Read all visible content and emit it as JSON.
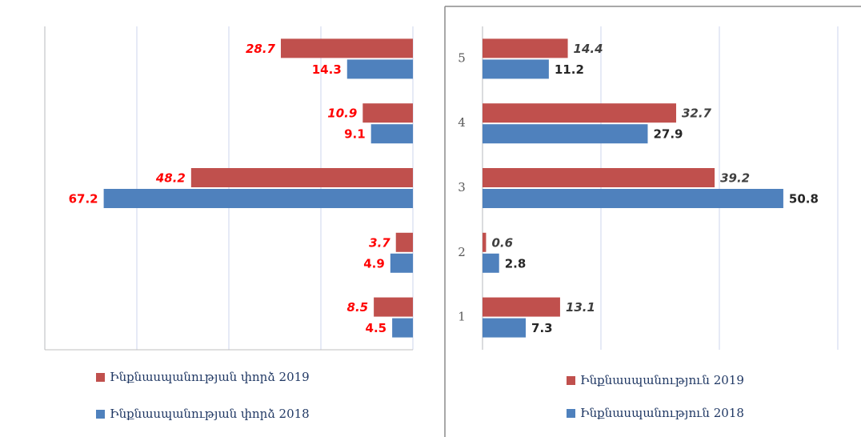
{
  "chart_data": [
    {
      "type": "bar",
      "orientation": "horizontal",
      "x_reversed": true,
      "categories": [
        null,
        null,
        null,
        null,
        null
      ],
      "series": [
        {
          "name": "Ինքնասպանության փորձ 2019",
          "color": "#c0504d",
          "values": [
            8.5,
            3.7,
            48.2,
            10.9,
            28.7
          ]
        },
        {
          "name": "Ինքնասպանության փորձ 2018",
          "color": "#4f81bd",
          "values": [
            4.5,
            4.9,
            67.2,
            9.1,
            14.3
          ]
        }
      ],
      "xlim": [
        0,
        80
      ],
      "xticks": [
        0,
        20,
        40,
        60,
        80
      ],
      "grid": true,
      "legend": "bottom",
      "value_label_color": "#ff0000"
    },
    {
      "type": "bar",
      "orientation": "horizontal",
      "x_reversed": false,
      "categories": [
        "1",
        "2",
        "3",
        "4",
        "5"
      ],
      "series": [
        {
          "name": "Ինքնասպանություն 2019",
          "color": "#c0504d",
          "values": [
            13.1,
            0.6,
            39.2,
            32.7,
            14.4
          ]
        },
        {
          "name": "Ինքնասպանություն 2018",
          "color": "#4f81bd",
          "values": [
            7.3,
            2.8,
            50.8,
            27.9,
            11.2
          ]
        }
      ],
      "xlim": [
        0,
        60
      ],
      "xticks": [
        0,
        20,
        40,
        60
      ],
      "grid": true,
      "legend": "bottom",
      "value_label_color": "#404040"
    }
  ]
}
